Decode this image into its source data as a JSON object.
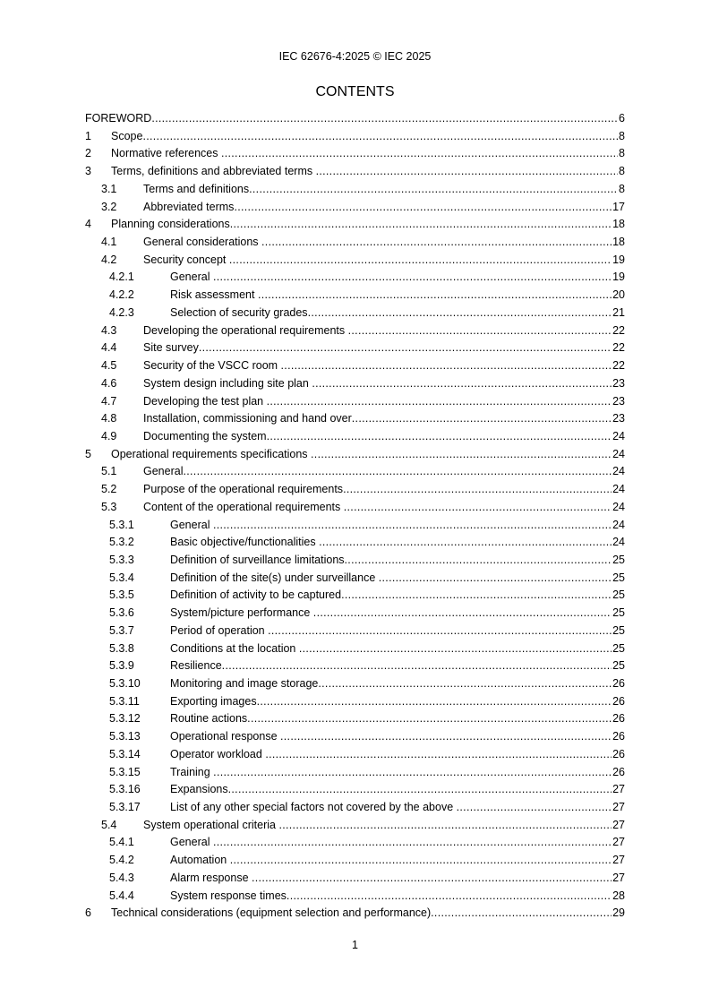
{
  "header": "IEC 62676-4:2025 © IEC 2025",
  "title": "CONTENTS",
  "page_number": "1",
  "entries": [
    {
      "num": "",
      "text": "FOREWORD",
      "page": "6",
      "level": 0
    },
    {
      "num": "1",
      "text": "Scope",
      "page": "8",
      "level": 1
    },
    {
      "num": "2",
      "text": "Normative references ",
      "page": "8",
      "level": 1
    },
    {
      "num": "3",
      "text": "Terms, definitions and abbreviated terms ",
      "page": "8",
      "level": 1
    },
    {
      "num": "3.1",
      "text": "Terms and definitions",
      "page": "8",
      "level": 2
    },
    {
      "num": "3.2",
      "text": "Abbreviated terms",
      "page": "17",
      "level": 2
    },
    {
      "num": "4",
      "text": "Planning considerations",
      "page": "18",
      "level": 1
    },
    {
      "num": "4.1",
      "text": "General considerations ",
      "page": "18",
      "level": 2
    },
    {
      "num": "4.2",
      "text": "Security concept ",
      "page": "19",
      "level": 2
    },
    {
      "num": "4.2.1",
      "text": "General ",
      "page": "19",
      "level": 3
    },
    {
      "num": "4.2.2",
      "text": "Risk assessment ",
      "page": "20",
      "level": 3
    },
    {
      "num": "4.2.3",
      "text": "Selection of security grades",
      "page": "21",
      "level": 3
    },
    {
      "num": "4.3",
      "text": "Developing the operational requirements ",
      "page": "22",
      "level": 2
    },
    {
      "num": "4.4",
      "text": "Site survey",
      "page": "22",
      "level": 2
    },
    {
      "num": "4.5",
      "text": "Security of the VSCC room ",
      "page": "22",
      "level": 2
    },
    {
      "num": "4.6",
      "text": "System design including site plan ",
      "page": "23",
      "level": 2
    },
    {
      "num": "4.7",
      "text": "Developing the test plan ",
      "page": "23",
      "level": 2
    },
    {
      "num": "4.8",
      "text": "Installation, commissioning and hand over",
      "page": "23",
      "level": 2
    },
    {
      "num": "4.9",
      "text": "Documenting the system",
      "page": "24",
      "level": 2
    },
    {
      "num": "5",
      "text": "Operational requirements specifications ",
      "page": "24",
      "level": 1
    },
    {
      "num": "5.1",
      "text": "General",
      "page": "24",
      "level": 2
    },
    {
      "num": "5.2",
      "text": "Purpose of the operational requirements",
      "page": "24",
      "level": 2
    },
    {
      "num": "5.3",
      "text": "Content of the operational requirements ",
      "page": "24",
      "level": 2
    },
    {
      "num": "5.3.1",
      "text": "General ",
      "page": "24",
      "level": 3
    },
    {
      "num": "5.3.2",
      "text": "Basic objective/functionalities ",
      "page": "24",
      "level": 3
    },
    {
      "num": "5.3.3",
      "text": "Definition of surveillance limitations",
      "page": "25",
      "level": 3
    },
    {
      "num": "5.3.4",
      "text": "Definition of the site(s) under surveillance ",
      "page": "25",
      "level": 3
    },
    {
      "num": "5.3.5",
      "text": "Definition of activity to be captured",
      "page": "25",
      "level": 3
    },
    {
      "num": "5.3.6",
      "text": "System/picture performance ",
      "page": "25",
      "level": 3
    },
    {
      "num": "5.3.7",
      "text": "Period of operation ",
      "page": "25",
      "level": 3
    },
    {
      "num": "5.3.8",
      "text": "Conditions at the location ",
      "page": "25",
      "level": 3
    },
    {
      "num": "5.3.9",
      "text": "Resilience",
      "page": "25",
      "level": 3
    },
    {
      "num": "5.3.10",
      "text": "Monitoring and image storage",
      "page": "26",
      "level": 3
    },
    {
      "num": "5.3.11",
      "text": "Exporting images",
      "page": "26",
      "level": 3
    },
    {
      "num": "5.3.12",
      "text": "Routine actions",
      "page": "26",
      "level": 3
    },
    {
      "num": "5.3.13",
      "text": "Operational response ",
      "page": "26",
      "level": 3
    },
    {
      "num": "5.3.14",
      "text": "Operator workload ",
      "page": "26",
      "level": 3
    },
    {
      "num": "5.3.15",
      "text": "Training ",
      "page": "26",
      "level": 3
    },
    {
      "num": "5.3.16",
      "text": "Expansions",
      "page": "27",
      "level": 3
    },
    {
      "num": "5.3.17",
      "text": "List of any other special factors not covered by the above ",
      "page": "27",
      "level": 3
    },
    {
      "num": "5.4",
      "text": "System operational criteria ",
      "page": "27",
      "level": 2
    },
    {
      "num": "5.4.1",
      "text": "General ",
      "page": "27",
      "level": 3
    },
    {
      "num": "5.4.2",
      "text": "Automation ",
      "page": "27",
      "level": 3
    },
    {
      "num": "5.4.3",
      "text": "Alarm response ",
      "page": "27",
      "level": 3
    },
    {
      "num": "5.4.4",
      "text": "System response times",
      "page": "28",
      "level": 3
    },
    {
      "num": "6",
      "text": "Technical considerations (equipment selection and performance)",
      "page": "29",
      "level": 1
    }
  ]
}
